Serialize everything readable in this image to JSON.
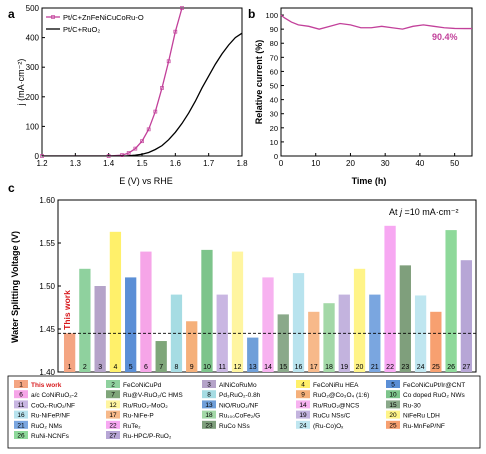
{
  "chart_data": [
    {
      "panel": "a",
      "type": "line",
      "xlabel": "E (V) vs RHE",
      "ylabel": "j (mA·cm⁻²)",
      "xlim": [
        1.2,
        1.8
      ],
      "ylim": [
        0,
        500
      ],
      "xticks": [
        "1.2",
        "1.3",
        "1.4",
        "1.5",
        "1.6",
        "1.7",
        "1.8"
      ],
      "yticks": [
        "0",
        "100",
        "200",
        "300",
        "400",
        "500"
      ],
      "legend_position": "top-left",
      "series": [
        {
          "name": "Pt/C+ZnFeNiCuCoRu-O",
          "color": "#c2409a",
          "marker": "square",
          "x": [
            1.2,
            1.4,
            1.44,
            1.46,
            1.48,
            1.5,
            1.52,
            1.54,
            1.56,
            1.58,
            1.6,
            1.62
          ],
          "y": [
            0,
            0,
            3,
            10,
            25,
            50,
            90,
            150,
            230,
            320,
            420,
            500
          ]
        },
        {
          "name": "Pt/C+RuO₂",
          "color": "#000000",
          "marker": "none",
          "x": [
            1.2,
            1.45,
            1.48,
            1.5,
            1.52,
            1.54,
            1.56,
            1.58,
            1.6,
            1.62,
            1.64,
            1.66,
            1.68,
            1.7,
            1.72,
            1.74,
            1.76,
            1.78,
            1.8
          ],
          "y": [
            0,
            0,
            3,
            6,
            12,
            22,
            35,
            55,
            80,
            110,
            145,
            185,
            230,
            270,
            310,
            345,
            375,
            400,
            415
          ]
        }
      ]
    },
    {
      "panel": "b",
      "type": "line",
      "xlabel": "Time (h)",
      "ylabel": "Relative current (%)",
      "xlim": [
        0,
        55
      ],
      "ylim": [
        0,
        105
      ],
      "xticks": [
        "0",
        "10",
        "20",
        "30",
        "40",
        "50"
      ],
      "yticks": [
        "0",
        "10",
        "20",
        "30",
        "40",
        "50",
        "60",
        "70",
        "80",
        "90",
        "100"
      ],
      "annotation": "90.4%",
      "series": [
        {
          "color": "#c2409a",
          "x": [
            0,
            1,
            3,
            5,
            8,
            11,
            14,
            17,
            20,
            23,
            26,
            29,
            32,
            35,
            38,
            41,
            44,
            47,
            50,
            53,
            55
          ],
          "y": [
            100,
            98,
            95,
            93,
            92,
            90,
            92,
            94,
            93,
            91,
            91,
            92,
            91,
            90,
            92,
            93,
            92,
            91,
            90.5,
            90.4,
            90.4
          ]
        }
      ]
    },
    {
      "panel": "c",
      "type": "bar",
      "ylabel": "Water Splitting Voltage (V)",
      "ylim": [
        1.4,
        1.6
      ],
      "yticks": [
        "1.40",
        "1.45",
        "1.50",
        "1.55",
        "1.60"
      ],
      "annotation": "At j =10 mA·cm⁻²",
      "highlight_label": "This work",
      "reference_line": 1.445,
      "categories": [
        "1",
        "2",
        "3",
        "4",
        "5",
        "6",
        "7",
        "8",
        "9",
        "10",
        "11",
        "12",
        "13",
        "14",
        "15",
        "16",
        "17",
        "18",
        "19",
        "20",
        "21",
        "22",
        "23",
        "24",
        "25",
        "26",
        "27"
      ],
      "values": [
        1.445,
        1.52,
        1.5,
        1.563,
        1.51,
        1.54,
        1.436,
        1.49,
        1.459,
        1.542,
        1.49,
        1.54,
        1.44,
        1.51,
        1.467,
        1.515,
        1.47,
        1.48,
        1.49,
        1.52,
        1.49,
        1.57,
        1.524,
        1.489,
        1.47,
        1.565,
        1.53
      ],
      "colors": [
        "#f4a582",
        "#8fd19e",
        "#b5a3c9",
        "#fff06a",
        "#5b8fd6",
        "#f6a5e8",
        "#7fa67a",
        "#a6dce3",
        "#f5b07a",
        "#7dc48b",
        "#c9b6e2",
        "#fff5a0",
        "#6f9fd9",
        "#f7b2f0",
        "#8aa98a",
        "#b8e3ee",
        "#f7b98a",
        "#a3d8a7",
        "#c3b3de",
        "#fff488",
        "#7aa6e0",
        "#f7a8f2",
        "#7f9f7c",
        "#bfe6f0",
        "#f7a070",
        "#8ed99a",
        "#b7a6d6"
      ],
      "legend": [
        "This work",
        "FeCoNiCuPd",
        "AlNiCoRuMo",
        "FeCoNiRu HEA",
        "FeCoNiCuPt/Ir@CNT",
        "a/c CoNiRuO₂-2",
        "Ru@V-RuO₂/C HMS",
        "Pd₃RuO₂-0.8h",
        "RuO₂@Co₃O₄ (1:6)",
        "Co doped RuO₂ NWs",
        "CoOₓ-RuO₂/NF",
        "Ru/RuO₂-MoO₂",
        "NiO/RuO₂/NF",
        "Ru/RuO₂@NCS",
        "Ru-30",
        "Ru-NiFeP/NF",
        "Ru-NiFe-P",
        "Ru₁₀₀CoFe₂/G",
        "RuCu NSs/C",
        "NiFeRu LDH",
        "RuO₂ NMs",
        "RuTe₂",
        "RuCo NSs",
        "(Ru-Co)Oₓ",
        "Ru-MnFeP/NF",
        "RuNi-NCNFs",
        "Ru-HPC/P-RuO₂"
      ]
    }
  ]
}
